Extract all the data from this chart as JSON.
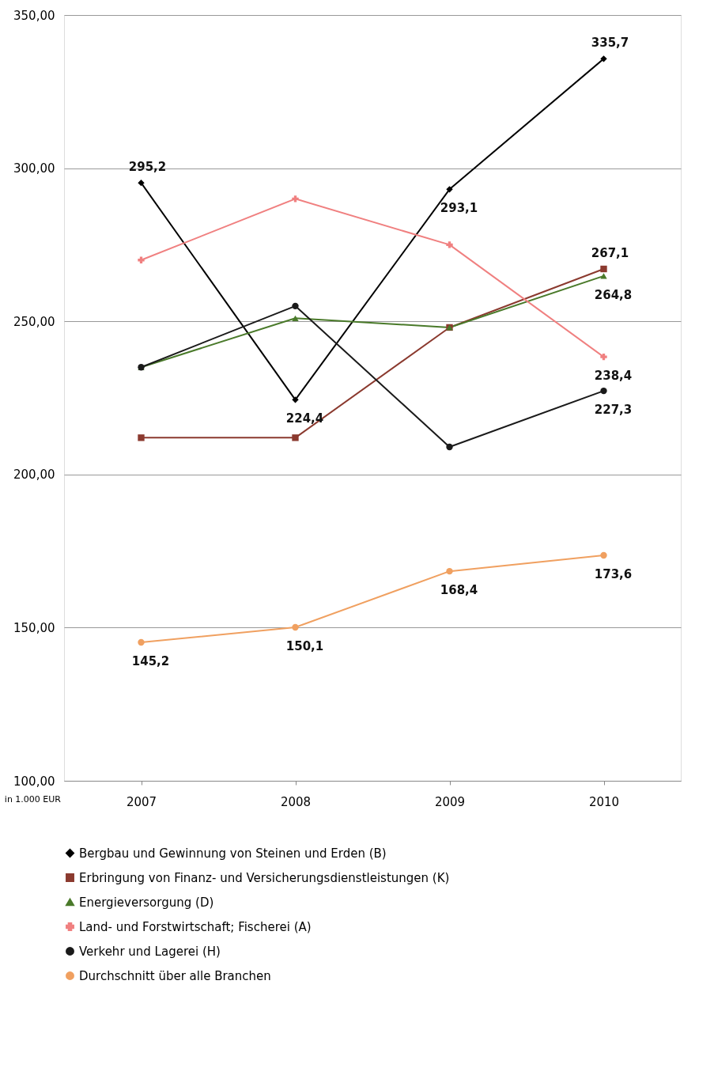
{
  "chart_data": {
    "type": "line",
    "categories": [
      "2007",
      "2008",
      "2009",
      "2010"
    ],
    "annotations": [
      "in 1.000 EUR"
    ],
    "ylim": [
      100,
      350
    ],
    "yticks": [
      {
        "value": 100,
        "label": "100,00"
      },
      {
        "value": 150,
        "label": "150,00"
      },
      {
        "value": 200,
        "label": "200,00"
      },
      {
        "value": 250,
        "label": "250,00"
      },
      {
        "value": 300,
        "label": "300,00"
      },
      {
        "value": 350,
        "label": "350,00"
      }
    ],
    "grid": "y",
    "legend": "bottom",
    "line_style": "solid",
    "series": [
      {
        "name": "Bergbau und Gewinnung von Steinen und Erden (B)",
        "color": "#000000",
        "marker": "diamond",
        "values": [
          295.2,
          224.4,
          293.1,
          335.7
        ],
        "value_labels": [
          "295,2",
          "224,4",
          "293,1",
          "335,7"
        ]
      },
      {
        "name": "Erbringung von Finanz- und Versicherungsdienstleistungen  (K)",
        "color": "#8b3a2f",
        "marker": "square",
        "values": [
          212,
          212,
          248,
          267.1
        ],
        "value_labels": [
          null,
          null,
          null,
          "267,1"
        ]
      },
      {
        "name": "Energieversorgung (D)",
        "color": "#4a7a2a",
        "marker": "triangle",
        "values": [
          235,
          251,
          248,
          264.8
        ],
        "value_labels": [
          null,
          null,
          null,
          "264,8"
        ]
      },
      {
        "name": "Land- und Forstwirtschaft; Fischerei (A)",
        "color": "#f08080",
        "marker": "cross",
        "values": [
          270,
          290,
          275,
          238.4
        ],
        "value_labels": [
          null,
          null,
          null,
          "238,4"
        ]
      },
      {
        "name": "Verkehr und Lagerei (H)",
        "color": "#1a1a1a",
        "marker": "circle",
        "values": [
          235,
          255,
          209,
          227.3
        ],
        "value_labels": [
          null,
          null,
          null,
          "227,3"
        ]
      },
      {
        "name": "Durchschnitt über alle Branchen",
        "color": "#f0a060",
        "marker": "circle",
        "values": [
          145.2,
          150.1,
          168.4,
          173.6
        ],
        "value_labels": [
          "145,2",
          "150,1",
          "168,4",
          "173,6"
        ]
      }
    ]
  }
}
